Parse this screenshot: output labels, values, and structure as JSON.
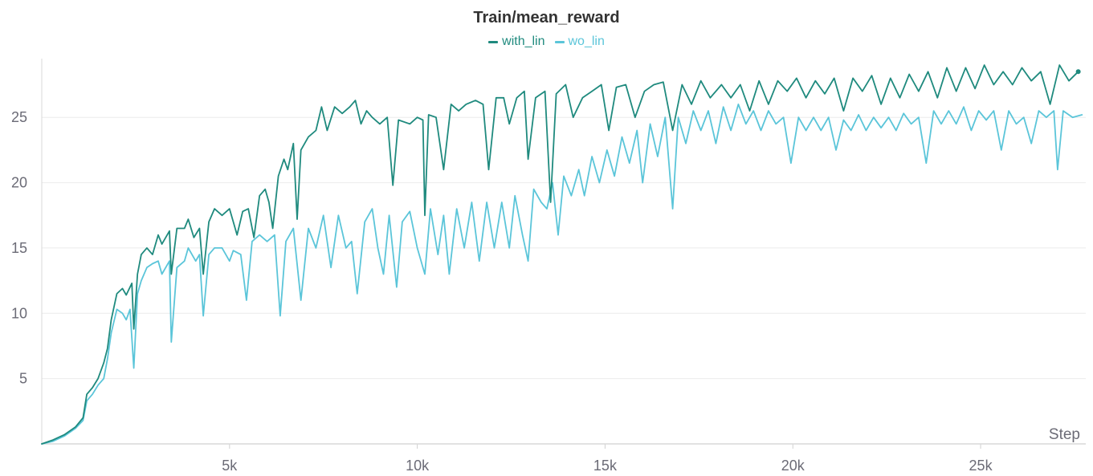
{
  "chart_data": {
    "type": "line",
    "title": "Train/mean_reward",
    "xlabel": "Step",
    "ylabel": "",
    "xlim": [
      0,
      27800
    ],
    "ylim": [
      0,
      29.5
    ],
    "xticks": [
      5000,
      10000,
      15000,
      20000,
      25000
    ],
    "xtick_labels": [
      "5k",
      "10k",
      "15k",
      "20k",
      "25k"
    ],
    "yticks": [
      5,
      10,
      15,
      20,
      25
    ],
    "ytick_labels": [
      "5",
      "10",
      "15",
      "20",
      "25"
    ],
    "grid": true,
    "legend": "top-center",
    "series": [
      {
        "name": "with_lin",
        "color": "#1f8a7e",
        "end_marker": true,
        "points": [
          [
            0,
            0.0
          ],
          [
            300,
            0.3
          ],
          [
            600,
            0.7
          ],
          [
            900,
            1.3
          ],
          [
            1100,
            2.0
          ],
          [
            1200,
            3.8
          ],
          [
            1350,
            4.3
          ],
          [
            1500,
            5.0
          ],
          [
            1650,
            6.2
          ],
          [
            1750,
            7.3
          ],
          [
            1850,
            9.5
          ],
          [
            2000,
            11.5
          ],
          [
            2150,
            11.9
          ],
          [
            2250,
            11.4
          ],
          [
            2400,
            12.3
          ],
          [
            2450,
            8.8
          ],
          [
            2550,
            13.0
          ],
          [
            2650,
            14.5
          ],
          [
            2800,
            15.0
          ],
          [
            2950,
            14.5
          ],
          [
            3100,
            16.0
          ],
          [
            3200,
            15.3
          ],
          [
            3400,
            16.3
          ],
          [
            3450,
            13.0
          ],
          [
            3600,
            16.5
          ],
          [
            3800,
            16.5
          ],
          [
            3900,
            17.2
          ],
          [
            4050,
            15.8
          ],
          [
            4200,
            16.5
          ],
          [
            4300,
            13.0
          ],
          [
            4450,
            17.0
          ],
          [
            4600,
            18.0
          ],
          [
            4800,
            17.5
          ],
          [
            5000,
            18.0
          ],
          [
            5100,
            17.0
          ],
          [
            5200,
            16.0
          ],
          [
            5350,
            17.8
          ],
          [
            5500,
            18.0
          ],
          [
            5650,
            15.8
          ],
          [
            5800,
            19.0
          ],
          [
            5950,
            19.5
          ],
          [
            6050,
            18.5
          ],
          [
            6150,
            16.5
          ],
          [
            6300,
            20.5
          ],
          [
            6450,
            21.8
          ],
          [
            6550,
            21.0
          ],
          [
            6700,
            23.0
          ],
          [
            6800,
            17.2
          ],
          [
            6900,
            22.5
          ],
          [
            7100,
            23.5
          ],
          [
            7300,
            24.0
          ],
          [
            7450,
            25.8
          ],
          [
            7600,
            24.0
          ],
          [
            7800,
            25.8
          ],
          [
            8000,
            25.3
          ],
          [
            8200,
            25.8
          ],
          [
            8350,
            26.3
          ],
          [
            8500,
            24.5
          ],
          [
            8650,
            25.5
          ],
          [
            8800,
            25.0
          ],
          [
            9000,
            24.5
          ],
          [
            9200,
            25.0
          ],
          [
            9350,
            19.8
          ],
          [
            9500,
            24.8
          ],
          [
            9800,
            24.5
          ],
          [
            10000,
            25.0
          ],
          [
            10150,
            24.8
          ],
          [
            10200,
            17.5
          ],
          [
            10300,
            25.2
          ],
          [
            10500,
            25.0
          ],
          [
            10700,
            21.0
          ],
          [
            10900,
            26.0
          ],
          [
            11100,
            25.5
          ],
          [
            11300,
            26.0
          ],
          [
            11550,
            26.3
          ],
          [
            11750,
            26.0
          ],
          [
            11900,
            21.0
          ],
          [
            12100,
            26.5
          ],
          [
            12300,
            26.5
          ],
          [
            12450,
            24.5
          ],
          [
            12650,
            26.5
          ],
          [
            12850,
            27.0
          ],
          [
            12950,
            21.8
          ],
          [
            13150,
            26.5
          ],
          [
            13400,
            27.0
          ],
          [
            13550,
            18.5
          ],
          [
            13700,
            26.8
          ],
          [
            13950,
            27.5
          ],
          [
            14150,
            25.0
          ],
          [
            14400,
            26.5
          ],
          [
            14650,
            27.0
          ],
          [
            14900,
            27.5
          ],
          [
            15100,
            24.0
          ],
          [
            15300,
            27.3
          ],
          [
            15550,
            27.5
          ],
          [
            15800,
            25.0
          ],
          [
            16050,
            27.0
          ],
          [
            16300,
            27.5
          ],
          [
            16550,
            27.7
          ],
          [
            16800,
            24.0
          ],
          [
            17050,
            27.5
          ],
          [
            17300,
            26.0
          ],
          [
            17550,
            27.8
          ],
          [
            17800,
            26.5
          ],
          [
            18100,
            27.5
          ],
          [
            18350,
            26.5
          ],
          [
            18600,
            27.5
          ],
          [
            18850,
            25.5
          ],
          [
            19100,
            27.8
          ],
          [
            19350,
            26.0
          ],
          [
            19600,
            27.8
          ],
          [
            19850,
            27.0
          ],
          [
            20100,
            28.0
          ],
          [
            20350,
            26.5
          ],
          [
            20600,
            27.8
          ],
          [
            20850,
            26.8
          ],
          [
            21100,
            28.0
          ],
          [
            21350,
            25.5
          ],
          [
            21600,
            28.0
          ],
          [
            21850,
            27.0
          ],
          [
            22100,
            28.2
          ],
          [
            22350,
            26.0
          ],
          [
            22600,
            28.0
          ],
          [
            22850,
            26.5
          ],
          [
            23100,
            28.3
          ],
          [
            23350,
            27.0
          ],
          [
            23600,
            28.5
          ],
          [
            23850,
            26.5
          ],
          [
            24100,
            28.8
          ],
          [
            24350,
            27.0
          ],
          [
            24600,
            28.8
          ],
          [
            24850,
            27.2
          ],
          [
            25100,
            29.0
          ],
          [
            25350,
            27.5
          ],
          [
            25600,
            28.5
          ],
          [
            25850,
            27.5
          ],
          [
            26100,
            28.8
          ],
          [
            26350,
            27.8
          ],
          [
            26600,
            28.5
          ],
          [
            26850,
            26.0
          ],
          [
            27100,
            29.0
          ],
          [
            27350,
            27.8
          ],
          [
            27600,
            28.5
          ]
        ]
      },
      {
        "name": "wo_lin",
        "color": "#5bc5d9",
        "end_marker": false,
        "points": [
          [
            0,
            0.0
          ],
          [
            300,
            0.2
          ],
          [
            600,
            0.6
          ],
          [
            900,
            1.2
          ],
          [
            1100,
            1.8
          ],
          [
            1200,
            3.3
          ],
          [
            1350,
            3.8
          ],
          [
            1500,
            4.5
          ],
          [
            1650,
            5.0
          ],
          [
            1750,
            6.5
          ],
          [
            1850,
            8.5
          ],
          [
            2000,
            10.3
          ],
          [
            2150,
            10.0
          ],
          [
            2250,
            9.5
          ],
          [
            2350,
            10.3
          ],
          [
            2450,
            5.8
          ],
          [
            2550,
            11.5
          ],
          [
            2650,
            12.5
          ],
          [
            2800,
            13.5
          ],
          [
            2950,
            13.8
          ],
          [
            3100,
            14.0
          ],
          [
            3200,
            13.0
          ],
          [
            3400,
            14.0
          ],
          [
            3450,
            7.8
          ],
          [
            3600,
            13.5
          ],
          [
            3800,
            14.0
          ],
          [
            3900,
            15.0
          ],
          [
            4100,
            14.0
          ],
          [
            4200,
            14.5
          ],
          [
            4300,
            9.8
          ],
          [
            4450,
            14.5
          ],
          [
            4600,
            15.0
          ],
          [
            4800,
            15.0
          ],
          [
            5000,
            14.0
          ],
          [
            5100,
            14.8
          ],
          [
            5300,
            14.5
          ],
          [
            5450,
            11.0
          ],
          [
            5600,
            15.5
          ],
          [
            5800,
            16.0
          ],
          [
            6000,
            15.5
          ],
          [
            6200,
            16.0
          ],
          [
            6350,
            9.8
          ],
          [
            6500,
            15.5
          ],
          [
            6700,
            16.5
          ],
          [
            6900,
            11.0
          ],
          [
            7100,
            16.5
          ],
          [
            7300,
            15.0
          ],
          [
            7500,
            17.5
          ],
          [
            7700,
            13.5
          ],
          [
            7900,
            17.5
          ],
          [
            8100,
            15.0
          ],
          [
            8250,
            15.5
          ],
          [
            8400,
            11.5
          ],
          [
            8600,
            17.0
          ],
          [
            8800,
            18.0
          ],
          [
            8950,
            15.0
          ],
          [
            9100,
            13.0
          ],
          [
            9250,
            17.5
          ],
          [
            9450,
            12.0
          ],
          [
            9600,
            17.0
          ],
          [
            9800,
            17.8
          ],
          [
            10000,
            15.0
          ],
          [
            10200,
            13.0
          ],
          [
            10350,
            18.0
          ],
          [
            10550,
            14.5
          ],
          [
            10700,
            17.5
          ],
          [
            10850,
            13.0
          ],
          [
            11050,
            18.0
          ],
          [
            11250,
            15.0
          ],
          [
            11450,
            18.5
          ],
          [
            11650,
            14.0
          ],
          [
            11850,
            18.5
          ],
          [
            12050,
            15.0
          ],
          [
            12250,
            18.5
          ],
          [
            12450,
            15.0
          ],
          [
            12600,
            19.0
          ],
          [
            12800,
            16.0
          ],
          [
            12950,
            14.0
          ],
          [
            13100,
            19.5
          ],
          [
            13300,
            18.5
          ],
          [
            13450,
            18.0
          ],
          [
            13600,
            20.0
          ],
          [
            13750,
            16.0
          ],
          [
            13900,
            20.5
          ],
          [
            14100,
            19.0
          ],
          [
            14300,
            21.0
          ],
          [
            14450,
            19.0
          ],
          [
            14650,
            22.0
          ],
          [
            14850,
            20.0
          ],
          [
            15050,
            22.5
          ],
          [
            15250,
            20.5
          ],
          [
            15450,
            23.5
          ],
          [
            15650,
            21.5
          ],
          [
            15850,
            24.0
          ],
          [
            16000,
            20.0
          ],
          [
            16200,
            24.5
          ],
          [
            16400,
            22.0
          ],
          [
            16600,
            25.0
          ],
          [
            16800,
            18.0
          ],
          [
            16950,
            25.0
          ],
          [
            17150,
            23.0
          ],
          [
            17350,
            25.5
          ],
          [
            17550,
            24.0
          ],
          [
            17750,
            25.5
          ],
          [
            17950,
            23.0
          ],
          [
            18150,
            25.8
          ],
          [
            18350,
            24.0
          ],
          [
            18550,
            26.0
          ],
          [
            18750,
            24.5
          ],
          [
            18950,
            25.5
          ],
          [
            19150,
            24.0
          ],
          [
            19350,
            25.5
          ],
          [
            19550,
            24.5
          ],
          [
            19750,
            25.0
          ],
          [
            19950,
            21.5
          ],
          [
            20150,
            25.0
          ],
          [
            20350,
            24.0
          ],
          [
            20550,
            25.0
          ],
          [
            20750,
            24.0
          ],
          [
            20950,
            25.0
          ],
          [
            21150,
            22.5
          ],
          [
            21350,
            24.8
          ],
          [
            21550,
            24.0
          ],
          [
            21750,
            25.2
          ],
          [
            21950,
            24.0
          ],
          [
            22150,
            25.0
          ],
          [
            22350,
            24.2
          ],
          [
            22550,
            25.0
          ],
          [
            22750,
            24.0
          ],
          [
            22950,
            25.3
          ],
          [
            23150,
            24.5
          ],
          [
            23350,
            25.0
          ],
          [
            23550,
            21.5
          ],
          [
            23750,
            25.5
          ],
          [
            23950,
            24.5
          ],
          [
            24150,
            25.5
          ],
          [
            24350,
            24.5
          ],
          [
            24550,
            25.8
          ],
          [
            24750,
            24.0
          ],
          [
            24950,
            25.5
          ],
          [
            25150,
            24.8
          ],
          [
            25350,
            25.5
          ],
          [
            25550,
            22.5
          ],
          [
            25750,
            25.5
          ],
          [
            25950,
            24.5
          ],
          [
            26150,
            25.0
          ],
          [
            26350,
            23.0
          ],
          [
            26550,
            25.5
          ],
          [
            26750,
            25.0
          ],
          [
            26950,
            25.5
          ],
          [
            27050,
            21.0
          ],
          [
            27200,
            25.5
          ],
          [
            27450,
            25.0
          ],
          [
            27700,
            25.2
          ]
        ]
      }
    ]
  }
}
